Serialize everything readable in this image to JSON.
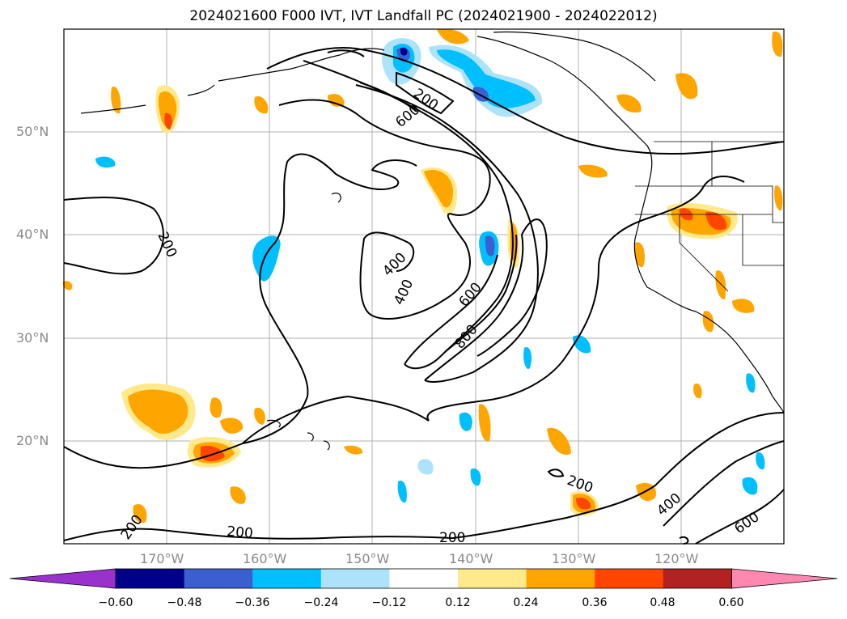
{
  "title": "2024021600 F000 IVT, IVT Landfall PC (2024021900 - 2024022012)",
  "map": {
    "lon_range": [
      -180,
      -110
    ],
    "lat_range": [
      10,
      60
    ],
    "lat_labels": [
      "50°N",
      "40°N",
      "30°N",
      "20°N"
    ],
    "lon_labels": [
      "170°W",
      "160°W",
      "150°W",
      "140°W",
      "130°W",
      "120°W"
    ],
    "contour_labels": [
      "200",
      "600",
      "200",
      "400",
      "400",
      "600",
      "800",
      "200",
      "200",
      "200",
      "200",
      "400",
      "600"
    ]
  },
  "colorbar": {
    "colors": [
      "#9932cc",
      "#00008b",
      "#3b5fcf",
      "#00bfff",
      "#ade3fa",
      "#ffffff",
      "#ffe98a",
      "#ffa500",
      "#ff4500",
      "#b22222",
      "#ff88b0"
    ],
    "ticks": [
      "−0.60",
      "−0.48",
      "−0.36",
      "−0.24",
      "−0.12",
      "0.12",
      "0.24",
      "0.36",
      "0.48",
      "0.60"
    ]
  }
}
